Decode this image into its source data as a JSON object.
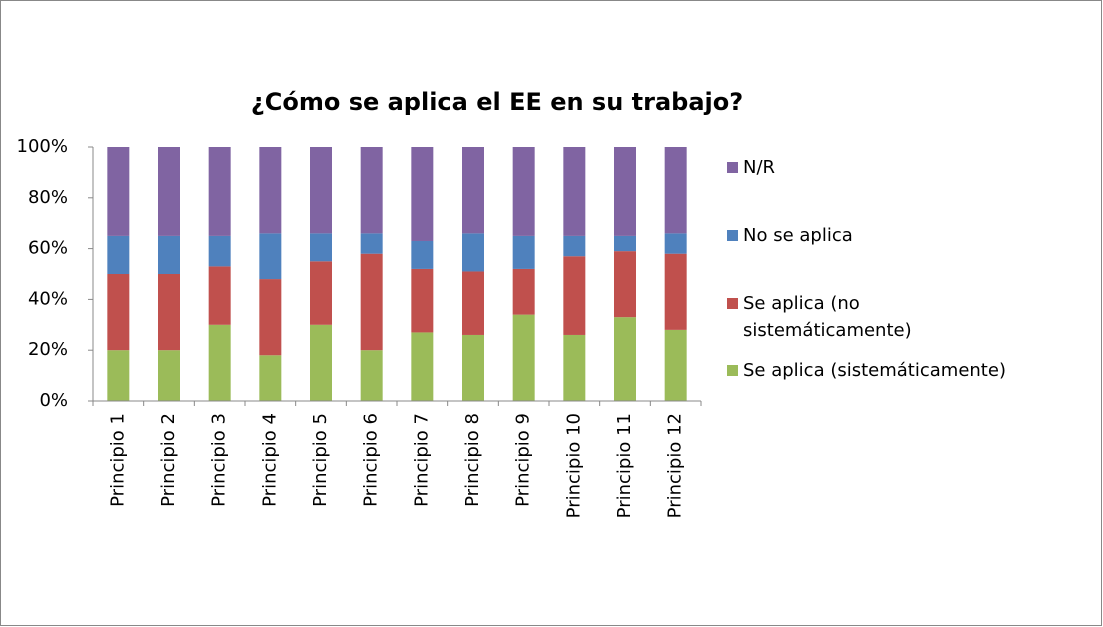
{
  "chart_data": {
    "type": "stacked_bar",
    "title": "¿Cómo se aplica el EE en su trabajo?",
    "categories": [
      "Principio 1",
      "Principio 2",
      "Principio 3",
      "Principio 4",
      "Principio 5",
      "Principio 6",
      "Principio 7",
      "Principio 8",
      "Principio 9",
      "Principio 10",
      "Principio 11",
      "Principio 12"
    ],
    "series": [
      {
        "name": "Se aplica (sistemáticamente)",
        "color": "#9bbb59",
        "values": [
          20,
          20,
          30,
          18,
          30,
          20,
          27,
          26,
          34,
          26,
          33,
          28
        ]
      },
      {
        "name": "Se aplica (no sistemáticamente)",
        "color": "#c0504d",
        "values": [
          30,
          30,
          23,
          30,
          25,
          38,
          25,
          25,
          18,
          31,
          26,
          30
        ]
      },
      {
        "name": "No se aplica",
        "color": "#4f81bd",
        "values": [
          15,
          15,
          12,
          18,
          11,
          8,
          11,
          15,
          13,
          8,
          6,
          8
        ]
      },
      {
        "name": "N/R",
        "color": "#8064a2",
        "values": [
          35,
          35,
          35,
          34,
          34,
          34,
          37,
          34,
          35,
          35,
          35,
          34
        ]
      }
    ],
    "ylim": [
      0,
      100
    ],
    "yticks": [
      {
        "value": 0,
        "label": "0%"
      },
      {
        "value": 20,
        "label": "20%"
      },
      {
        "value": 40,
        "label": "40%"
      },
      {
        "value": 60,
        "label": "60%"
      },
      {
        "value": 80,
        "label": "80%"
      },
      {
        "value": 100,
        "label": "100%"
      }
    ],
    "legend": "right"
  }
}
